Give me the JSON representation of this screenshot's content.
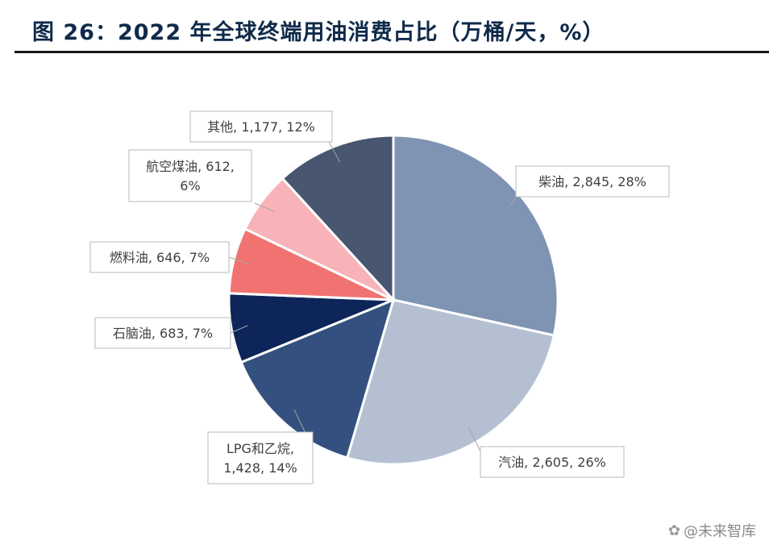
{
  "figure": {
    "title": "图 26：2022 年全球终端用油消费占比（万桶/天，%）"
  },
  "chart_data": {
    "type": "pie",
    "units": "万桶/天",
    "start_angle_deg": 90,
    "direction": "clockwise",
    "slices": [
      {
        "name": "柴油",
        "value": 2845,
        "percent": 28,
        "color": "#7f93b3",
        "label_lines": [
          "柴油, 2,845, 28%"
        ]
      },
      {
        "name": "汽油",
        "value": 2605,
        "percent": 26,
        "color": "#b4c0d2",
        "label_lines": [
          "汽油, 2,605, 26%"
        ]
      },
      {
        "name": "LPG和乙烷",
        "value": 1428,
        "percent": 14,
        "color": "#34507f",
        "label_lines": [
          "LPG和乙烷,",
          "1,428, 14%"
        ]
      },
      {
        "name": "石脑油",
        "value": 683,
        "percent": 7,
        "color": "#0d2558",
        "label_lines": [
          "石脑油, 683, 7%"
        ]
      },
      {
        "name": "燃料油",
        "value": 646,
        "percent": 7,
        "color": "#f07372",
        "label_lines": [
          "燃料油, 646, 7%"
        ]
      },
      {
        "name": "航空煤油",
        "value": 612,
        "percent": 6,
        "color": "#f7b3b8",
        "label_lines": [
          "航空煤油, 612,",
          "6%"
        ]
      },
      {
        "name": "其他",
        "value": 1177,
        "percent": 12,
        "color": "#485670",
        "label_lines": [
          "其他, 1,177, 12%"
        ]
      }
    ]
  },
  "watermark": {
    "text": "@未来智库",
    "icon": "paw-icon"
  }
}
